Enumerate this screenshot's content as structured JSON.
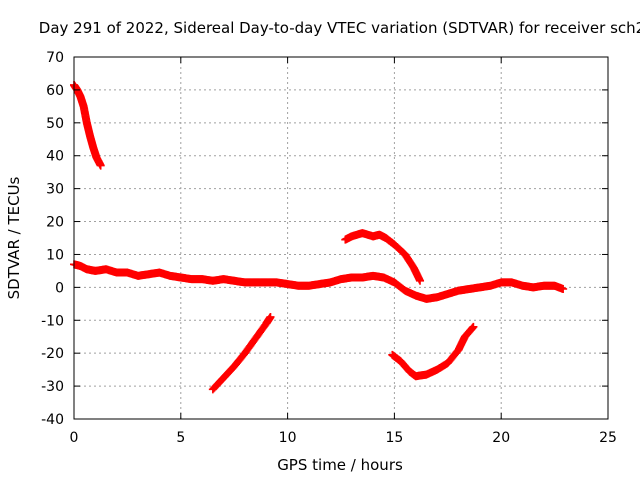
{
  "chart_data": {
    "type": "scatter",
    "title": "Day 291 of 2022, Sidereal Day-to-day VTEC variation (SDTVAR) for receiver sch2",
    "xlabel": "GPS time / hours",
    "ylabel": "SDTVAR / TECUs",
    "xlim": [
      0,
      25
    ],
    "ylim": [
      -40,
      70
    ],
    "xticks": [
      0,
      5,
      10,
      15,
      20,
      25
    ],
    "yticks": [
      -40,
      -30,
      -20,
      -10,
      0,
      10,
      20,
      30,
      40,
      50,
      60,
      70
    ],
    "grid": true,
    "legend": "none",
    "color": "#ff0000",
    "series": [
      {
        "name": "arc-1",
        "points": [
          [
            0.0,
            61.5
          ],
          [
            0.15,
            60
          ],
          [
            0.3,
            58
          ],
          [
            0.45,
            55
          ],
          [
            0.6,
            50
          ],
          [
            0.75,
            46
          ],
          [
            0.9,
            42.5
          ],
          [
            1.05,
            39.5
          ],
          [
            1.25,
            37
          ]
        ]
      },
      {
        "name": "arc-2",
        "points": [
          [
            0.0,
            7
          ],
          [
            0.3,
            6.5
          ],
          [
            0.6,
            5.5
          ],
          [
            1.0,
            5
          ],
          [
            1.5,
            5.5
          ],
          [
            2.0,
            4.5
          ],
          [
            2.5,
            4.5
          ],
          [
            3.0,
            3.5
          ],
          [
            3.5,
            4
          ],
          [
            4.0,
            4.5
          ],
          [
            4.5,
            3.5
          ],
          [
            5.0,
            3
          ],
          [
            5.5,
            2.5
          ],
          [
            6.0,
            2.5
          ],
          [
            6.5,
            2
          ],
          [
            7.0,
            2.5
          ],
          [
            7.5,
            2
          ],
          [
            8.0,
            1.5
          ],
          [
            8.5,
            1.5
          ],
          [
            9.0,
            1.5
          ],
          [
            9.5,
            1.5
          ],
          [
            10.0,
            1
          ],
          [
            10.5,
            0.5
          ],
          [
            11.0,
            0.5
          ],
          [
            11.5,
            1
          ],
          [
            12.0,
            1.5
          ],
          [
            12.5,
            2.5
          ],
          [
            13.0,
            3
          ],
          [
            13.5,
            3
          ],
          [
            14.0,
            3.5
          ],
          [
            14.5,
            3
          ],
          [
            15.0,
            1.5
          ],
          [
            15.5,
            -1
          ],
          [
            16.0,
            -2.5
          ],
          [
            16.5,
            -3.5
          ],
          [
            17.0,
            -3
          ],
          [
            17.5,
            -2
          ],
          [
            18.0,
            -1
          ],
          [
            18.5,
            -0.5
          ],
          [
            19.0,
            0
          ],
          [
            19.5,
            0.5
          ],
          [
            20.0,
            1.5
          ],
          [
            20.5,
            1.5
          ],
          [
            21.0,
            0.5
          ],
          [
            21.5,
            0
          ],
          [
            22.0,
            0.5
          ],
          [
            22.5,
            0.5
          ],
          [
            22.9,
            -0.5
          ]
        ]
      },
      {
        "name": "arc-3",
        "points": [
          [
            6.5,
            -31
          ],
          [
            7.0,
            -27.5
          ],
          [
            7.5,
            -24
          ],
          [
            8.0,
            -20
          ],
          [
            8.5,
            -15.5
          ],
          [
            9.0,
            -11
          ],
          [
            9.2,
            -9
          ]
        ]
      },
      {
        "name": "arc-4",
        "points": [
          [
            12.7,
            14.5
          ],
          [
            13.0,
            15.5
          ],
          [
            13.5,
            16.5
          ],
          [
            14.0,
            15.5
          ],
          [
            14.3,
            16
          ],
          [
            14.6,
            15
          ],
          [
            15.0,
            13
          ],
          [
            15.5,
            10
          ],
          [
            15.9,
            6
          ],
          [
            16.2,
            2
          ]
        ]
      },
      {
        "name": "arc-5",
        "points": [
          [
            14.9,
            -20.5
          ],
          [
            15.3,
            -22.5
          ],
          [
            15.7,
            -25.5
          ],
          [
            16.0,
            -27
          ],
          [
            16.5,
            -26.5
          ],
          [
            17.0,
            -25
          ],
          [
            17.5,
            -23
          ],
          [
            18.0,
            -19
          ],
          [
            18.3,
            -15
          ],
          [
            18.7,
            -12
          ]
        ]
      }
    ]
  }
}
